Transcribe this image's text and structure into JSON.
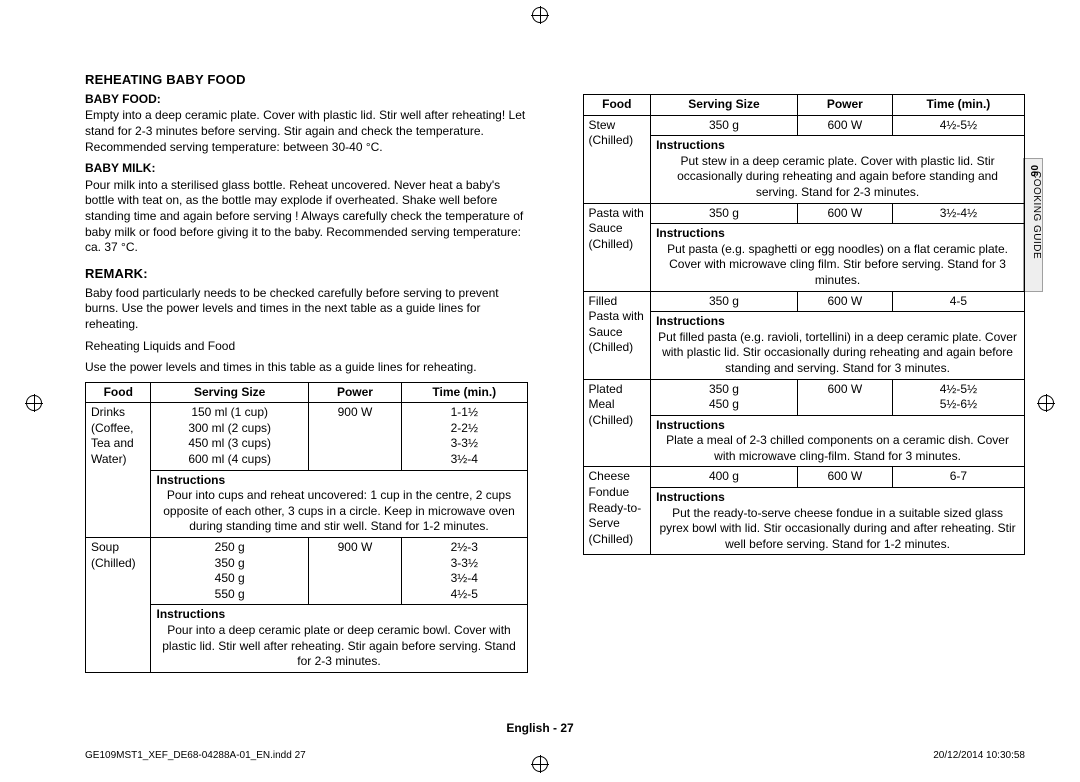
{
  "registration_mark_color": "#000000",
  "section1": {
    "title": "REHEATING BABY FOOD",
    "baby_food_label": "BABY FOOD:",
    "baby_food_text": "Empty into a deep ceramic plate. Cover with plastic lid. Stir well after reheating! Let stand for 2-3 minutes before serving. Stir again and check the temperature. Recommended serving temperature: between 30-40 °C.",
    "baby_milk_label": "BABY MILK:",
    "baby_milk_text": "Pour milk into a sterilised glass bottle. Reheat uncovered. Never heat a baby's bottle with teat on, as the bottle may explode if overheated. Shake well before standing time and again before serving ! Always carefully check the temperature of baby milk or food before giving it to the baby. Recommended serving temperature: ca. 37 °C."
  },
  "section2": {
    "title": "REMARK:",
    "text": "Baby food particularly needs to be checked carefully before serving to prevent burns. Use the power levels and times in the next table as a guide lines for reheating.",
    "subtitle": "Reheating Liquids and Food",
    "subtext": "Use the power levels and times in this table as a guide lines for reheating."
  },
  "headers": {
    "food": "Food",
    "serving": "Serving Size",
    "power": "Power",
    "time": "Time (min.)",
    "instructions": "Instructions"
  },
  "table1": {
    "border_color": "#000000",
    "rows": [
      {
        "food_l1": "Drinks (Coffee,",
        "food_l2": "Tea and Water)",
        "sizes": [
          "150 ml (1 cup)",
          "300 ml (2 cups)",
          "450 ml (3 cups)",
          "600 ml (4 cups)"
        ],
        "power": "900 W",
        "times": [
          "1-1½",
          "2-2½",
          "3-3½",
          "3½-4"
        ],
        "instr": "Pour into cups and reheat uncovered: 1 cup in the centre, 2 cups opposite of each other, 3 cups in a circle. Keep in microwave oven during standing time and stir well. Stand for 1-2 minutes."
      },
      {
        "food_l1": "Soup (Chilled)",
        "food_l2": "",
        "sizes": [
          "250 g",
          "350 g",
          "450 g",
          "550 g"
        ],
        "power": "900 W",
        "times": [
          "2½-3",
          "3-3½",
          "3½-4",
          "4½-5"
        ],
        "instr": "Pour into a deep ceramic plate or deep ceramic bowl. Cover with plastic lid. Stir well after reheating. Stir again before serving. Stand for 2-3 minutes."
      }
    ]
  },
  "table2": {
    "rows": [
      {
        "food_l1": "Stew (Chilled)",
        "food_l2": "",
        "sizes": [
          "350 g"
        ],
        "power": "600 W",
        "times": [
          "4½-5½"
        ],
        "instr": "Put stew in a deep ceramic plate. Cover with plastic lid. Stir occasionally during reheating and again before standing and serving. Stand for 2-3 minutes."
      },
      {
        "food_l1": "Pasta with",
        "food_l2": "Sauce (Chilled)",
        "sizes": [
          "350 g"
        ],
        "power": "600 W",
        "times": [
          "3½-4½"
        ],
        "instr": "Put pasta (e.g. spaghetti or egg noodles) on a flat ceramic plate. Cover with microwave cling film. Stir before serving. Stand for 3 minutes."
      },
      {
        "food_l1": "Filled Pasta with",
        "food_l2": "Sauce (Chilled)",
        "sizes": [
          "350 g"
        ],
        "power": "600 W",
        "times": [
          "4-5"
        ],
        "instr": "Put filled pasta (e.g. ravioli, tortellini) in a deep ceramic plate. Cover with plastic lid. Stir occasionally during reheating and again before standing and serving. Stand for 3 minutes."
      },
      {
        "food_l1": "Plated Meal",
        "food_l2": "(Chilled)",
        "sizes": [
          "350 g",
          "450 g"
        ],
        "power": "600 W",
        "times": [
          "4½-5½",
          "5½-6½"
        ],
        "instr": "Plate a meal of 2-3 chilled components on a ceramic dish. Cover with microwave cling-film. Stand for 3 minutes."
      },
      {
        "food_l1": "Cheese Fondue",
        "food_l2": "Ready-to-Serve",
        "food_l3": "(Chilled)",
        "sizes": [
          "400 g"
        ],
        "power": "600 W",
        "times": [
          "6-7"
        ],
        "instr": "Put the ready-to-serve cheese fondue in a suitable sized glass pyrex bowl with lid. Stir occasionally during and after reheating. Stir well before serving. Stand for 1-2 minutes."
      }
    ]
  },
  "sidetab": {
    "num": "06",
    "text": "COOKING GUIDE"
  },
  "page_label_lang": "English - ",
  "page_label_num": "27",
  "footer_left": "GE109MST1_XEF_DE68-04288A-01_EN.indd   27",
  "footer_right": "20/12/2014   10:30:58"
}
